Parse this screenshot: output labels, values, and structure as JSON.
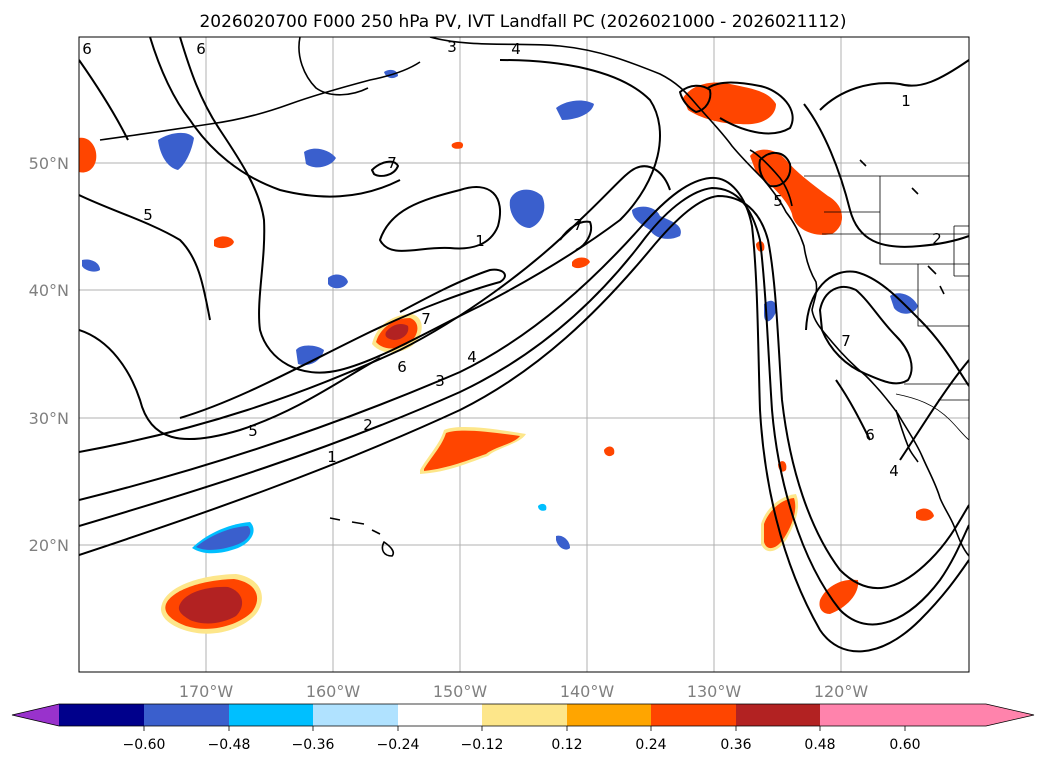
{
  "title": "2026020700 F000 250 hPa PV, IVT Landfall PC (2026021000 - 2026021112)",
  "lat_labels": [
    "50°N",
    "40°N",
    "30°N",
    "20°N"
  ],
  "lon_labels": [
    "170°W",
    "160°W",
    "150°W",
    "140°W",
    "130°W",
    "120°W"
  ],
  "contour_labels": [
    "6",
    "6",
    "3",
    "4",
    "1",
    "5",
    "7",
    "1",
    "7",
    "7",
    "6",
    "4",
    "3",
    "2",
    "5",
    "1",
    "5",
    "2",
    "7",
    "6",
    "4"
  ],
  "colorbar": {
    "colors": [
      "#9932cc",
      "#00008b",
      "#3a5fcd",
      "#00bfff",
      "#b0e2ff",
      "#ffffff",
      "#fde68a",
      "#ffa500",
      "#ff4500",
      "#b22222",
      "#ff83ac"
    ],
    "tick_labels": [
      "−0.60",
      "−0.48",
      "−0.36",
      "−0.24",
      "−0.12",
      "0.12",
      "0.24",
      "0.36",
      "0.48",
      "0.60"
    ]
  }
}
